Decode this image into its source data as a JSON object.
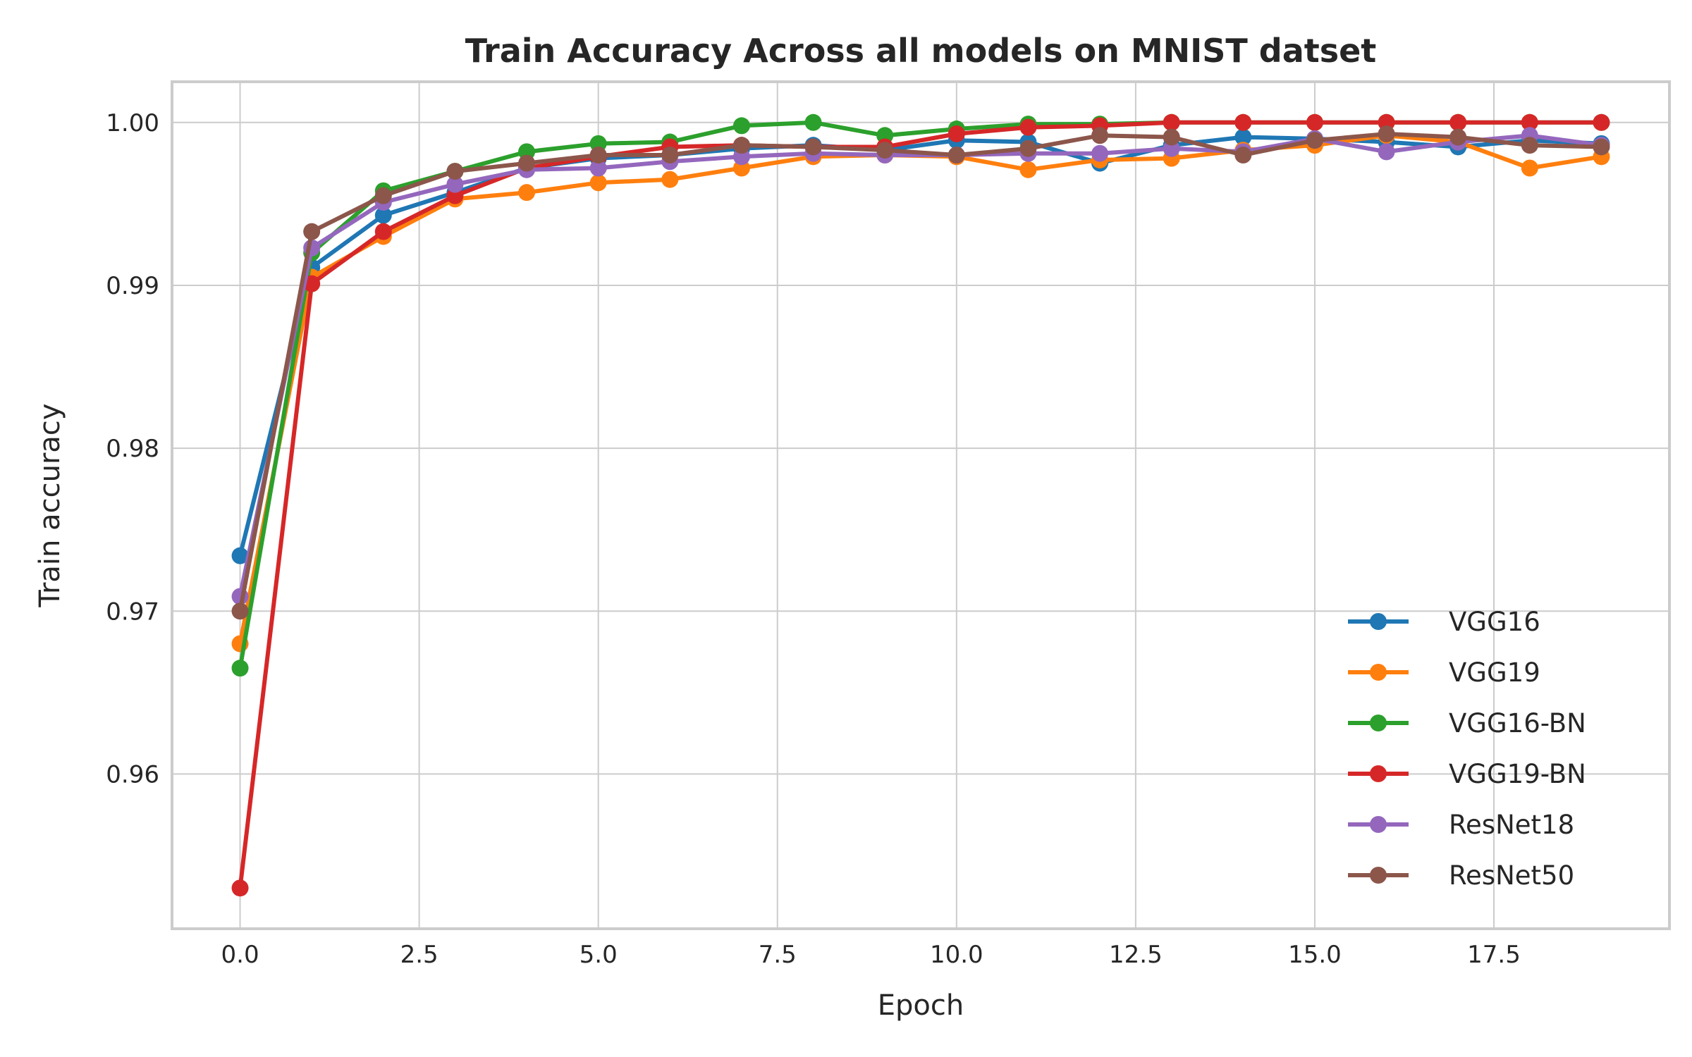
{
  "chart_data": {
    "type": "line",
    "title": "Train Accuracy Across all models on MNIST datset",
    "xlabel": "Epoch",
    "ylabel": "Train accuracy",
    "xlim": [
      -0.95,
      19.95
    ],
    "ylim": [
      0.9505,
      1.0025
    ],
    "xticks": [
      0.0,
      2.5,
      5.0,
      7.5,
      10.0,
      12.5,
      15.0,
      17.5
    ],
    "xtick_labels": [
      "0.0",
      "2.5",
      "5.0",
      "7.5",
      "10.0",
      "12.5",
      "15.0",
      "17.5"
    ],
    "yticks": [
      0.96,
      0.97,
      0.98,
      0.99,
      1.0
    ],
    "ytick_labels": [
      "0.96",
      "0.97",
      "0.98",
      "0.99",
      "1.00"
    ],
    "grid": true,
    "legend_position": "lower-right",
    "x": [
      0,
      1,
      2,
      3,
      4,
      5,
      6,
      7,
      8,
      9,
      10,
      11,
      12,
      13,
      14,
      15,
      16,
      17,
      18,
      19
    ],
    "series": [
      {
        "name": "VGG16",
        "color": "#1f77b4",
        "values": [
          0.9734,
          0.9911,
          0.9943,
          0.9957,
          0.9972,
          0.9978,
          0.998,
          0.9984,
          0.9986,
          0.9983,
          0.9989,
          0.9988,
          0.9975,
          0.9986,
          0.9991,
          0.999,
          0.9988,
          0.9985,
          0.9989,
          0.9987
        ]
      },
      {
        "name": "VGG19",
        "color": "#ff7f0e",
        "values": [
          0.968,
          0.9905,
          0.993,
          0.9953,
          0.9957,
          0.9963,
          0.9965,
          0.9972,
          0.9979,
          0.998,
          0.9979,
          0.9971,
          0.9977,
          0.9978,
          0.9983,
          0.9986,
          0.9992,
          0.9988,
          0.9972,
          0.9979
        ]
      },
      {
        "name": "VGG16-BN",
        "color": "#2ca02c",
        "values": [
          0.9665,
          0.992,
          0.9958,
          0.997,
          0.9982,
          0.9987,
          0.9988,
          0.9998,
          1.0,
          0.9992,
          0.9996,
          0.9999,
          0.9999,
          1.0,
          1.0,
          1.0,
          1.0,
          1.0,
          1.0,
          1.0
        ]
      },
      {
        "name": "VGG19-BN",
        "color": "#d62728",
        "values": [
          0.953,
          0.9901,
          0.9933,
          0.9955,
          0.9972,
          0.9979,
          0.9985,
          0.9986,
          0.9985,
          0.9985,
          0.9993,
          0.9997,
          0.9998,
          1.0,
          1.0,
          1.0,
          1.0,
          1.0,
          1.0,
          1.0
        ]
      },
      {
        "name": "ResNet18",
        "color": "#9467bd",
        "values": [
          0.9709,
          0.9923,
          0.9951,
          0.9962,
          0.9971,
          0.9972,
          0.9976,
          0.9979,
          0.9981,
          0.998,
          0.998,
          0.9981,
          0.9981,
          0.9984,
          0.9982,
          0.999,
          0.9982,
          0.9988,
          0.9992,
          0.9986
        ]
      },
      {
        "name": "ResNet50",
        "color": "#8c564b",
        "values": [
          0.97,
          0.9933,
          0.9955,
          0.997,
          0.9975,
          0.998,
          0.998,
          0.9986,
          0.9985,
          0.9983,
          0.998,
          0.9984,
          0.9992,
          0.9991,
          0.998,
          0.9989,
          0.9993,
          0.9991,
          0.9986,
          0.9985
        ]
      }
    ]
  }
}
